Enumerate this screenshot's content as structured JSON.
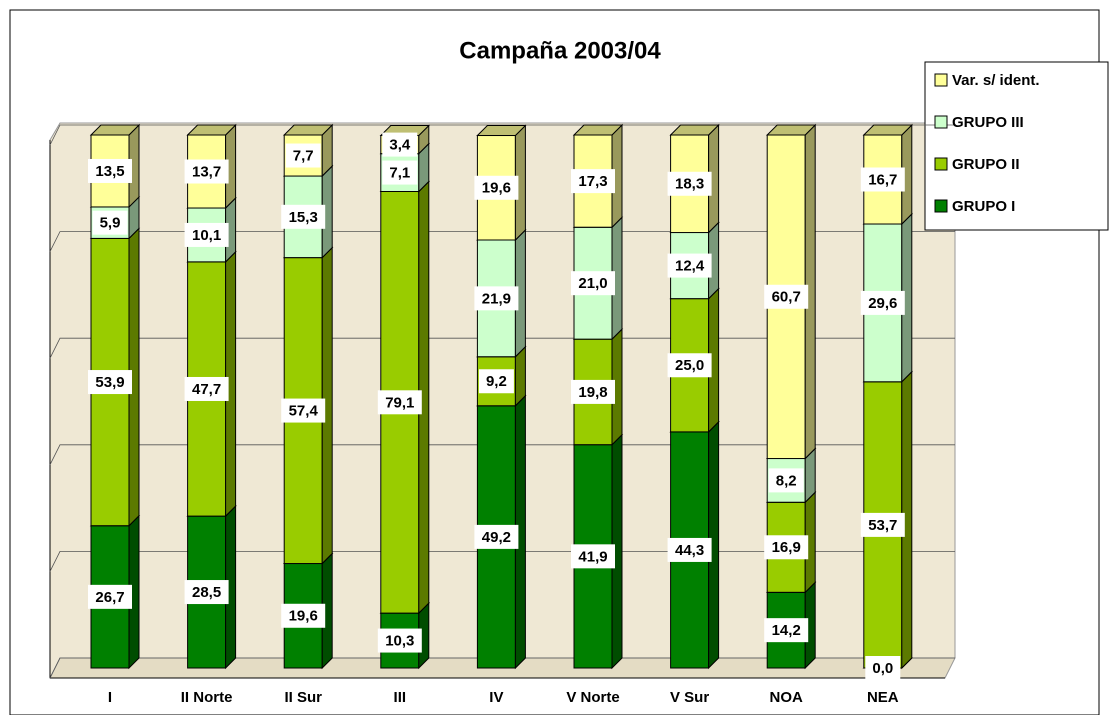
{
  "chart_data": {
    "type": "stacked-bar-3d",
    "title": "Campaña 2003/04",
    "categories": [
      "I",
      "II Norte",
      "II Sur",
      "III",
      "IV",
      "V Norte",
      "V Sur",
      "NOA",
      "NEA"
    ],
    "series": [
      {
        "name": "GRUPO I",
        "color": "#008000",
        "values": [
          26.7,
          28.5,
          19.6,
          10.3,
          49.2,
          41.9,
          44.3,
          14.2,
          0.0
        ],
        "value_labels": [
          "26,7",
          "28,5",
          "19,6",
          "10,3",
          "49,2",
          "41,9",
          "44,3",
          "14,2",
          "0,0"
        ]
      },
      {
        "name": "GRUPO II",
        "color": "#99cc00",
        "values": [
          53.9,
          47.7,
          57.4,
          79.1,
          9.2,
          19.8,
          25.0,
          16.9,
          53.7
        ],
        "value_labels": [
          "53,9",
          "47,7",
          "57,4",
          "79,1",
          "9,2",
          "19,8",
          "25,0",
          "16,9",
          "53,7"
        ]
      },
      {
        "name": "GRUPO III",
        "color": "#ccffcc",
        "values": [
          5.9,
          10.1,
          15.3,
          7.1,
          21.9,
          21.0,
          12.4,
          8.2,
          29.6
        ],
        "value_labels": [
          "5,9",
          "10,1",
          "15,3",
          "7,1",
          "21,9",
          "21,0",
          "12,4",
          "8,2",
          "29,6"
        ]
      },
      {
        "name": "Var. s/ ident.",
        "color": "#ffff99",
        "values": [
          13.5,
          13.7,
          7.7,
          3.4,
          19.6,
          17.3,
          18.3,
          60.7,
          16.7
        ],
        "value_labels": [
          "13,5",
          "13,7",
          "7,7",
          "3,4",
          "19,6",
          "17,3",
          "18,3",
          "60,7",
          "16,7"
        ]
      }
    ],
    "ylim": [
      0,
      100
    ],
    "yticks": [
      0,
      20,
      40,
      60,
      80,
      100
    ],
    "grid": true,
    "legend": "top-right"
  }
}
